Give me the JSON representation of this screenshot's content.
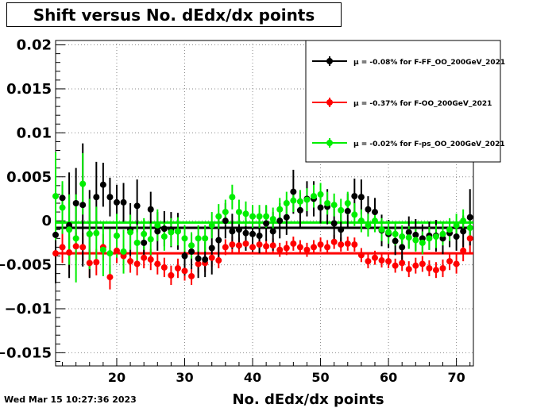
{
  "title": "Shift versus No. dEdx/dx points",
  "footer_timestamp": "Wed Mar 15 10:27:36 2023",
  "chart_data": {
    "type": "scatter",
    "title": "Shift versus No. dEdx/dx points",
    "xlabel": "No. dEdx/dx points",
    "ylabel": "",
    "xlim": [
      11,
      72.5
    ],
    "ylim": [
      -0.0165,
      0.0205
    ],
    "x_ticks": [
      20,
      30,
      40,
      50,
      60,
      70
    ],
    "x_tick_labels": [
      "20",
      "30",
      "40",
      "50",
      "60",
      "70"
    ],
    "y_ticks": [
      -0.015,
      -0.01,
      -0.005,
      0,
      0.005,
      0.01,
      0.015,
      0.02
    ],
    "y_tick_labels": [
      "−0.015",
      "−0.01",
      "−0.005",
      "0",
      "0.005",
      "0.01",
      "0.015",
      "0.02"
    ],
    "grid": true,
    "legend_position": "top-right",
    "x": [
      11,
      12,
      13,
      14,
      15,
      16,
      17,
      18,
      19,
      20,
      21,
      22,
      23,
      24,
      25,
      26,
      27,
      28,
      29,
      30,
      31,
      32,
      33,
      34,
      35,
      36,
      37,
      38,
      39,
      40,
      41,
      42,
      43,
      44,
      45,
      46,
      47,
      48,
      49,
      50,
      51,
      52,
      53,
      54,
      55,
      56,
      57,
      58,
      59,
      60,
      61,
      62,
      63,
      64,
      65,
      66,
      67,
      68,
      69,
      70,
      71,
      72
    ],
    "series": [
      {
        "name": "μ = -0.08% for F-FF_OO_200GeV_2021",
        "color": "#000000",
        "mean": -0.0008,
        "y": [
          -0.0016,
          0.0026,
          -0.0005,
          0.002,
          0.0018,
          -0.0015,
          0.0027,
          0.0041,
          0.0027,
          0.0021,
          0.0021,
          -0.001,
          0.0017,
          -0.0025,
          0.0013,
          -0.0012,
          -0.0009,
          -0.001,
          -0.0012,
          -0.004,
          -0.0035,
          -0.0043,
          -0.0044,
          -0.0031,
          -0.0022,
          0.0,
          -0.0012,
          -0.001,
          -0.0014,
          -0.0015,
          -0.0017,
          -0.0003,
          -0.0012,
          0.0,
          0.0004,
          0.0033,
          0.0012,
          0.0025,
          0.0025,
          0.0015,
          0.0016,
          -0.0003,
          -0.001,
          0.0011,
          0.0028,
          0.0027,
          0.0013,
          0.001,
          -0.0011,
          -0.0015,
          -0.0023,
          -0.003,
          -0.0013,
          -0.0016,
          -0.002,
          -0.0017,
          -0.0017,
          -0.002,
          -0.0014,
          -0.0018,
          -0.0012,
          0.0004
        ],
        "err": [
          0.0055,
          0.0015,
          0.006,
          0.004,
          0.007,
          0.005,
          0.004,
          0.0025,
          0.0022,
          0.002,
          0.0022,
          0.003,
          0.003,
          0.002,
          0.002,
          0.0022,
          0.002,
          0.002,
          0.0021,
          0.0022,
          0.002,
          0.0022,
          0.002,
          0.003,
          0.0025,
          0.002,
          0.002,
          0.0022,
          0.002,
          0.002,
          0.002,
          0.002,
          0.0022,
          0.002,
          0.002,
          0.0025,
          0.002,
          0.002,
          0.002,
          0.0018,
          0.002,
          0.002,
          0.0018,
          0.002,
          0.002,
          0.002,
          0.0015,
          0.0016,
          0.0018,
          0.0016,
          0.0016,
          0.0016,
          0.0018,
          0.0018,
          0.0016,
          0.0016,
          0.0018,
          0.0018,
          0.0016,
          0.0016,
          0.0018,
          0.0032
        ]
      },
      {
        "name": "μ = -0.37% for F-OO_200GeV_2021",
        "color": "#ff0000",
        "mean": -0.0037,
        "y": [
          -0.0037,
          -0.003,
          -0.0036,
          -0.0029,
          -0.003,
          -0.0048,
          -0.0047,
          -0.003,
          -0.0064,
          -0.0034,
          -0.004,
          -0.0046,
          -0.0049,
          -0.0042,
          -0.0044,
          -0.0049,
          -0.0053,
          -0.0062,
          -0.0054,
          -0.0057,
          -0.0063,
          -0.0049,
          -0.0048,
          -0.0042,
          -0.0045,
          -0.003,
          -0.0027,
          -0.0028,
          -0.0026,
          -0.003,
          -0.0027,
          -0.0029,
          -0.0028,
          -0.0033,
          -0.0031,
          -0.0026,
          -0.003,
          -0.0033,
          -0.003,
          -0.0027,
          -0.003,
          -0.0024,
          -0.0027,
          -0.0026,
          -0.0027,
          -0.0039,
          -0.0046,
          -0.0042,
          -0.0045,
          -0.0046,
          -0.0051,
          -0.0048,
          -0.0055,
          -0.0051,
          -0.0049,
          -0.0054,
          -0.0056,
          -0.0054,
          -0.0046,
          -0.0049,
          -0.0034,
          -0.002
        ],
        "err": [
          0.002,
          0.0018,
          0.0018,
          0.0016,
          0.0016,
          0.0016,
          0.0015,
          0.0015,
          0.0014,
          0.0014,
          0.0014,
          0.0013,
          0.0013,
          0.0012,
          0.0012,
          0.0012,
          0.0011,
          0.0011,
          0.0011,
          0.0011,
          0.001,
          0.001,
          0.001,
          0.001,
          0.0009,
          0.0009,
          0.0009,
          0.0009,
          0.0008,
          0.0008,
          0.0008,
          0.0008,
          0.0008,
          0.0008,
          0.0008,
          0.0008,
          0.0008,
          0.0008,
          0.0008,
          0.0008,
          0.0008,
          0.0008,
          0.0008,
          0.0008,
          0.0008,
          0.0008,
          0.0008,
          0.0008,
          0.0008,
          0.0008,
          0.0008,
          0.0009,
          0.0009,
          0.0009,
          0.0009,
          0.0009,
          0.0009,
          0.001,
          0.001,
          0.0011,
          0.0012,
          0.0016
        ]
      },
      {
        "name": "μ = -0.02% for F-ps_OO_200GeV_2021",
        "color": "#00ee00",
        "mean": -0.0002,
        "y": [
          0.0028,
          0.0015,
          -0.001,
          -0.002,
          0.0042,
          -0.0015,
          -0.0014,
          -0.0033,
          -0.0037,
          -0.0017,
          -0.0035,
          -0.0013,
          -0.0025,
          -0.0015,
          -0.0021,
          -0.0005,
          -0.0018,
          -0.0013,
          -0.0012,
          -0.002,
          -0.0028,
          -0.002,
          -0.002,
          -0.0005,
          0.0005,
          0.001,
          0.0027,
          0.001,
          0.0008,
          0.0005,
          0.0005,
          0.0005,
          0.0002,
          0.0013,
          0.002,
          0.0023,
          0.0022,
          0.0024,
          0.0028,
          0.003,
          0.002,
          0.0018,
          0.0012,
          0.002,
          0.0007,
          0.0,
          -0.0005,
          0.0,
          -0.001,
          -0.0013,
          -0.0015,
          -0.0018,
          -0.0019,
          -0.0022,
          -0.0025,
          -0.002,
          -0.0018,
          -0.0015,
          -0.001,
          -0.0005,
          0.0,
          -0.0008
        ],
        "err": [
          0.005,
          0.003,
          0.004,
          0.005,
          0.0035,
          0.004,
          0.003,
          0.003,
          0.0028,
          0.0025,
          0.0025,
          0.002,
          0.002,
          0.0018,
          0.0018,
          0.0018,
          0.0016,
          0.0016,
          0.0016,
          0.0015,
          0.0015,
          0.0015,
          0.0015,
          0.0015,
          0.0014,
          0.0014,
          0.0014,
          0.0014,
          0.0014,
          0.0013,
          0.0013,
          0.0013,
          0.0013,
          0.0013,
          0.0013,
          0.0013,
          0.0013,
          0.0013,
          0.0013,
          0.0013,
          0.0013,
          0.0013,
          0.0013,
          0.0013,
          0.0013,
          0.0013,
          0.0013,
          0.0013,
          0.0013,
          0.0013,
          0.0013,
          0.0013,
          0.0013,
          0.0013,
          0.0013,
          0.0013,
          0.0013,
          0.0013,
          0.0013,
          0.0013,
          0.0013,
          0.0013
        ]
      }
    ]
  }
}
